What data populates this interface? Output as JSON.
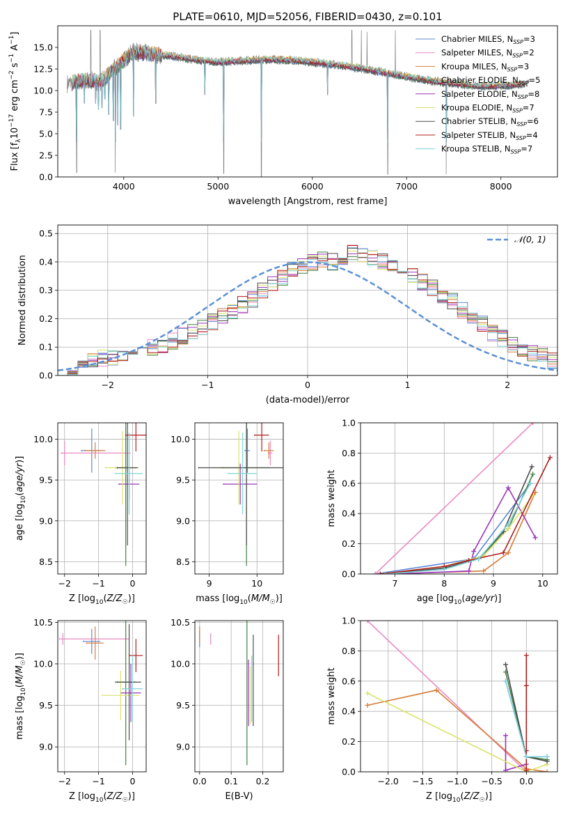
{
  "title": "PLATE=0610, MJD=52056, FIBERID=0430, z=0.101",
  "colors": {
    "Chabrier MILES": "#5b87d6",
    "Salpeter MILES": "#e98ac1",
    "Kroupa MILES": "#d67a35",
    "Chabrier ELODIE": "#3f7f45",
    "Salpeter ELODIE": "#9a33b8",
    "Kroupa ELODIE": "#d9e36a",
    "Chabrier STELIB": "#4c4c4c",
    "Salpeter STELIB": "#b11a1a",
    "Kroupa STELIB": "#7fd3d9",
    "spectrum": "#808080",
    "normal": "#5b8fd6"
  },
  "chart_data": [
    {
      "id": "spectrum",
      "type": "line",
      "xlabel": "wavelength [Angstrom, rest frame]",
      "ylabel": "Flux [f_λ10^-17 erg cm^-2 s^-1 A^-1]",
      "xlim": [
        3300,
        8600
      ],
      "ylim": [
        0,
        17.5
      ],
      "xticks": [
        4000,
        5000,
        6000,
        7000,
        8000
      ],
      "yticks": [
        0.0,
        2.5,
        5.0,
        7.5,
        10.0,
        12.5,
        15.0
      ],
      "legend_position": "top-right",
      "series": [
        {
          "name": "Chabrier MILES, N_SSP=3"
        },
        {
          "name": "Salpeter MILES, N_SSP=2"
        },
        {
          "name": "Kroupa MILES, N_SSP=3"
        },
        {
          "name": "Chabrier ELODIE, N_SSP=5"
        },
        {
          "name": "Salpeter ELODIE, N_SSP=8"
        },
        {
          "name": "Kroupa ELODIE, N_SSP=7"
        },
        {
          "name": "Chabrier STELIB, N_SSP=6"
        },
        {
          "name": "Salpeter STELIB, N_SSP=4"
        },
        {
          "name": "Kroupa STELIB, N_SSP=7"
        }
      ],
      "continuum": [
        [
          3400,
          10.8
        ],
        [
          3600,
          11.2
        ],
        [
          3750,
          11.0
        ],
        [
          3900,
          12.5
        ],
        [
          4000,
          13.5
        ],
        [
          4100,
          14.5
        ],
        [
          4300,
          14.2
        ],
        [
          4500,
          14.0
        ],
        [
          4800,
          13.5
        ],
        [
          5000,
          13.3
        ],
        [
          5200,
          13.4
        ],
        [
          5500,
          13.6
        ],
        [
          5800,
          13.5
        ],
        [
          6000,
          13.3
        ],
        [
          6300,
          12.9
        ],
        [
          6600,
          12.4
        ],
        [
          6900,
          11.8
        ],
        [
          7200,
          11.2
        ],
        [
          7500,
          10.8
        ],
        [
          7800,
          10.5
        ],
        [
          8100,
          10.6
        ],
        [
          8300,
          10.8
        ]
      ],
      "absorption_features": [
        [
          3500,
          0.5
        ],
        [
          3580,
          8.5
        ],
        [
          3700,
          8.5
        ],
        [
          3730,
          7.8
        ],
        [
          3770,
          8.0
        ],
        [
          3800,
          9.0
        ],
        [
          3840,
          7.2
        ],
        [
          3890,
          6.5
        ],
        [
          3910,
          0.5
        ],
        [
          3934,
          6.0
        ],
        [
          3968,
          5.5
        ],
        [
          4102,
          7.0
        ],
        [
          4340,
          8.5
        ],
        [
          4861,
          9.5
        ],
        [
          5060,
          0.4
        ],
        [
          5460,
          0.0
        ],
        [
          6160,
          9.5
        ],
        [
          6800,
          0.3
        ],
        [
          7420,
          0.3
        ]
      ],
      "spikes": [
        [
          3650,
          17.0
        ],
        [
          3750,
          17.0
        ],
        [
          6420,
          17.0
        ],
        [
          6520,
          17.0
        ],
        [
          6580,
          16.8
        ],
        [
          6880,
          17.0
        ]
      ]
    },
    {
      "id": "residuals",
      "type": "line",
      "xlabel": "(data-model)/error",
      "ylabel": "Normed distribution",
      "xlim": [
        -2.5,
        2.5
      ],
      "ylim": [
        0,
        0.53
      ],
      "xticks": [
        -2,
        -1,
        0,
        1,
        2
      ],
      "yticks": [
        0.0,
        0.1,
        0.2,
        0.3,
        0.4,
        0.5
      ],
      "legend_position": "top-right",
      "normal_label": "𝒩(0, 1)",
      "bin_width": 0.1,
      "bins_start": -2.5,
      "hist_base": [
        0.02,
        0.03,
        0.04,
        0.05,
        0.06,
        0.06,
        0.07,
        0.08,
        0.09,
        0.1,
        0.11,
        0.12,
        0.14,
        0.15,
        0.17,
        0.19,
        0.21,
        0.23,
        0.25,
        0.27,
        0.3,
        0.32,
        0.34,
        0.37,
        0.39,
        0.4,
        0.41,
        0.4,
        0.42,
        0.43,
        0.42,
        0.41,
        0.4,
        0.38,
        0.37,
        0.35,
        0.33,
        0.31,
        0.28,
        0.26,
        0.23,
        0.2,
        0.18,
        0.15,
        0.13,
        0.11,
        0.09,
        0.08,
        0.07,
        0.05
      ]
    },
    {
      "id": "z-age",
      "type": "scatter",
      "xlabel": "Z [log10(Z/Z☉)]",
      "ylabel": "age [log10(age/yr)]",
      "xlim": [
        -2.2,
        0.4
      ],
      "ylim": [
        8.35,
        10.2
      ],
      "xticks": [
        -2,
        -1,
        0
      ],
      "yticks": [
        8.5,
        9.0,
        9.5,
        10.0
      ],
      "points": [
        {
          "series": "Chabrier MILES",
          "x": -1.2,
          "y": 9.86,
          "xerr": 0.3,
          "yerr": 0.27
        },
        {
          "series": "Salpeter MILES",
          "x": -2.0,
          "y": 9.83,
          "xerr": 0.1,
          "yerr": 0.15,
          "xerr_hi": 1.95
        },
        {
          "series": "Kroupa MILES",
          "x": -1.1,
          "y": 9.86,
          "xerr": 0.3,
          "yerr": 0.1
        },
        {
          "series": "Chabrier ELODIE",
          "x": -0.2,
          "y": 9.65,
          "xerr": 0.3,
          "yerr": 1.2
        },
        {
          "series": "Salpeter ELODIE",
          "x": -0.1,
          "y": 9.45,
          "xerr": 0.3,
          "yerr": 0.2
        },
        {
          "series": "Kroupa ELODIE",
          "x": -0.3,
          "y": 9.65,
          "xerr": 0.5,
          "yerr": 0.45
        },
        {
          "series": "Chabrier STELIB",
          "x": -0.15,
          "y": 9.65,
          "xerr": 0.3,
          "yerr": 0.95
        },
        {
          "series": "Salpeter STELIB",
          "x": 0.1,
          "y": 10.05,
          "xerr": 0.3,
          "yerr": 0.2
        },
        {
          "series": "Kroupa STELIB",
          "x": -0.1,
          "y": 9.58,
          "xerr": 0.4,
          "yerr": 0.5
        }
      ]
    },
    {
      "id": "mass-age",
      "type": "scatter",
      "xlabel": "mass [log10(M/M☉)]",
      "xlim": [
        8.7,
        10.55
      ],
      "ylim": [
        8.35,
        10.2
      ],
      "xticks": [
        9,
        10
      ],
      "yticks": [
        8.5,
        9.0,
        9.5,
        10.0
      ],
      "points": [
        {
          "series": "Chabrier MILES",
          "x": 9.8,
          "y": 9.86,
          "xerr": 0.05,
          "yerr": 0.27
        },
        {
          "series": "Salpeter MILES",
          "x": 10.28,
          "y": 9.83,
          "xerr": 0.04,
          "yerr": 0.15
        },
        {
          "series": "Kroupa MILES",
          "x": 10.25,
          "y": 9.86,
          "xerr": 0.1,
          "yerr": 0.1
        },
        {
          "series": "Chabrier ELODIE",
          "x": 9.78,
          "y": 9.65,
          "xerr": 0.5,
          "yerr": 1.2
        },
        {
          "series": "Salpeter ELODIE",
          "x": 9.65,
          "y": 9.45,
          "xerr": 0.35,
          "yerr": 0.25
        },
        {
          "series": "Kroupa ELODIE",
          "x": 9.62,
          "y": 9.65,
          "xerr": 0.4,
          "yerr": 0.45
        },
        {
          "series": "Chabrier STELIB",
          "x": 9.78,
          "y": 9.65,
          "xerr": 1.0,
          "yerr": 0.95
        },
        {
          "series": "Salpeter STELIB",
          "x": 10.1,
          "y": 10.05,
          "xerr": 0.15,
          "yerr": 0.2
        },
        {
          "series": "Kroupa STELIB",
          "x": 9.7,
          "y": 9.58,
          "xerr": 0.3,
          "yerr": 0.5
        }
      ]
    },
    {
      "id": "age-weight",
      "type": "line",
      "xlabel": "age [log10(age/yr)]",
      "ylabel": "mass weight",
      "xlim": [
        6.3,
        10.3
      ],
      "ylim": [
        0,
        1.0
      ],
      "xticks": [
        7,
        8,
        9,
        10
      ],
      "yticks": [
        0.0,
        0.2,
        0.4,
        0.6,
        0.8,
        1.0
      ],
      "series": [
        {
          "name": "Chabrier MILES",
          "x": [
            6.6,
            8.6,
            9.75
          ],
          "y": [
            0.0,
            0.1,
            0.6
          ]
        },
        {
          "name": "Salpeter MILES",
          "x": [
            6.6,
            9.8
          ],
          "y": [
            0.0,
            1.0
          ]
        },
        {
          "name": "Kroupa MILES",
          "x": [
            6.8,
            8.8,
            9.3,
            9.85
          ],
          "y": [
            0.0,
            0.02,
            0.14,
            0.54
          ]
        },
        {
          "name": "Chabrier ELODIE",
          "x": [
            7.0,
            8.0,
            8.7,
            9.3,
            9.8
          ],
          "y": [
            0.0,
            0.04,
            0.1,
            0.3,
            0.66
          ]
        },
        {
          "name": "Salpeter ELODIE",
          "x": [
            7.0,
            8.5,
            8.6,
            9.3,
            9.85
          ],
          "y": [
            0.0,
            0.02,
            0.15,
            0.57,
            0.24
          ]
        },
        {
          "name": "Kroupa ELODIE",
          "x": [
            6.7,
            8.0,
            8.8,
            9.3,
            9.8
          ],
          "y": [
            0.0,
            0.05,
            0.12,
            0.3,
            0.52
          ]
        },
        {
          "name": "Chabrier STELIB",
          "x": [
            6.8,
            8.0,
            8.7,
            9.2,
            9.78
          ],
          "y": [
            0.0,
            0.04,
            0.1,
            0.28,
            0.71
          ]
        },
        {
          "name": "Salpeter STELIB",
          "x": [
            6.7,
            8.0,
            8.5,
            9.2,
            10.15
          ],
          "y": [
            0.0,
            0.05,
            0.09,
            0.14,
            0.77
          ]
        },
        {
          "name": "Kroupa STELIB",
          "x": [
            6.8,
            8.0,
            8.7,
            9.3,
            9.75
          ],
          "y": [
            0.0,
            0.03,
            0.1,
            0.33,
            0.6
          ]
        }
      ]
    },
    {
      "id": "z-mass",
      "type": "scatter",
      "xlabel": "Z [log10(Z/Z☉)]",
      "ylabel": "mass [log10(M/M☉)]",
      "xlim": [
        -2.2,
        0.4
      ],
      "ylim": [
        8.7,
        10.52
      ],
      "xticks": [
        -2,
        -1,
        0
      ],
      "yticks": [
        9.0,
        9.5,
        10.0,
        10.5
      ],
      "points": [
        {
          "series": "Chabrier MILES",
          "x": -1.2,
          "y": 10.27,
          "xerr": 0.25,
          "yerr": 0.15
        },
        {
          "series": "Salpeter MILES",
          "x": -2.05,
          "y": 10.3,
          "xerr": 0.1,
          "yerr": 0.07,
          "xerr_hi": 1.95
        },
        {
          "series": "Kroupa MILES",
          "x": -1.1,
          "y": 10.25,
          "xerr": 0.25,
          "yerr": 0.2
        },
        {
          "series": "Chabrier ELODIE",
          "x": -0.2,
          "y": 9.78,
          "xerr": 0.3,
          "yerr": 1.0
        },
        {
          "series": "Salpeter ELODIE",
          "x": -0.05,
          "y": 9.65,
          "xerr": 0.3,
          "yerr": 0.35
        },
        {
          "series": "Kroupa ELODIE",
          "x": -0.35,
          "y": 9.62,
          "xerr": 0.55,
          "yerr": 0.3
        },
        {
          "series": "Chabrier STELIB",
          "x": -0.1,
          "y": 9.78,
          "xerr": 0.35,
          "yerr": 0.7
        },
        {
          "series": "Salpeter STELIB",
          "x": 0.1,
          "y": 10.1,
          "xerr": 0.2,
          "yerr": 0.2
        },
        {
          "series": "Kroupa STELIB",
          "x": 0.0,
          "y": 9.7,
          "xerr": 0.3,
          "yerr": 0.4
        }
      ]
    },
    {
      "id": "ebv-mass",
      "type": "scatter",
      "xlabel": "E(B-V)",
      "xlim": [
        -0.015,
        0.265
      ],
      "ylim": [
        8.7,
        10.52
      ],
      "xticks": [
        0.0,
        0.1,
        0.2
      ],
      "yticks": [
        9.0,
        9.5,
        10.0,
        10.5
      ],
      "points": [
        {
          "series": "Chabrier MILES",
          "x": 0.0,
          "y": 10.3,
          "yerr": 0.1
        },
        {
          "series": "Salpeter MILES",
          "x": 0.035,
          "y": 10.3,
          "yerr": 0.07
        },
        {
          "series": "Kroupa MILES",
          "x": 0.0,
          "y": 10.35,
          "yerr": 0.1
        },
        {
          "series": "Chabrier ELODIE",
          "x": 0.15,
          "y": 9.78,
          "yerr": 1.0
        },
        {
          "series": "Salpeter ELODIE",
          "x": 0.155,
          "y": 9.65,
          "yerr": 0.4
        },
        {
          "series": "Kroupa ELODIE",
          "x": 0.16,
          "y": 9.62,
          "yerr": 0.35
        },
        {
          "series": "Chabrier STELIB",
          "x": 0.17,
          "y": 9.8,
          "yerr": 0.55
        },
        {
          "series": "Salpeter STELIB",
          "x": 0.25,
          "y": 10.1,
          "yerr": 0.25
        },
        {
          "series": "Kroupa STELIB",
          "x": 0.165,
          "y": 9.7,
          "yerr": 0.4
        }
      ]
    },
    {
      "id": "z-weight",
      "type": "line",
      "xlabel": "Z [log10(Z/Z☉)]",
      "ylabel": "mass weight",
      "xlim": [
        -2.4,
        0.45
      ],
      "ylim": [
        0,
        1.0
      ],
      "xticks": [
        -2.0,
        -1.5,
        -1.0,
        -0.5,
        0.0
      ],
      "yticks": [
        0.0,
        0.2,
        0.4,
        0.6,
        0.8,
        1.0
      ],
      "series": [
        {
          "name": "Chabrier MILES",
          "x": [
            -0.3,
            0.0,
            0.3
          ],
          "y": [
            0.6,
            0.1,
            0.1
          ]
        },
        {
          "name": "Salpeter MILES",
          "x": [
            -2.3,
            0.0
          ],
          "y": [
            1.0,
            0.0
          ]
        },
        {
          "name": "Kroupa MILES",
          "x": [
            -2.3,
            -1.3,
            0.0,
            0.3
          ],
          "y": [
            0.44,
            0.54,
            0.02,
            0.0
          ]
        },
        {
          "name": "Chabrier ELODIE",
          "x": [
            -0.3,
            0.0,
            0.3
          ],
          "y": [
            0.66,
            0.1,
            0.08
          ]
        },
        {
          "name": "Salpeter ELODIE",
          "x": [
            -0.3,
            -0.3,
            0.0
          ],
          "y": [
            0.24,
            0.01,
            0.05
          ]
        },
        {
          "name": "Kroupa ELODIE",
          "x": [
            -2.3,
            0.0,
            0.3
          ],
          "y": [
            0.52,
            0.0,
            0.05
          ]
        },
        {
          "name": "Chabrier STELIB",
          "x": [
            -0.3,
            0.0,
            0.3
          ],
          "y": [
            0.71,
            0.1,
            0.07
          ]
        },
        {
          "name": "Salpeter STELIB",
          "x": [
            0.0,
            0.0,
            0.0,
            0.0
          ],
          "y": [
            0.77,
            0.57,
            0.14,
            0.01
          ]
        },
        {
          "name": "Kroupa STELIB",
          "x": [
            -0.3,
            0.0,
            0.3
          ],
          "y": [
            0.6,
            0.1,
            0.1
          ]
        }
      ]
    }
  ]
}
